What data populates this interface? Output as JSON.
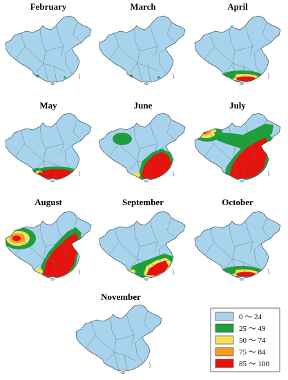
{
  "colors": {
    "background": "#ffffff",
    "base": "#a8d3ec",
    "outline": "#4d5b69",
    "grid": "#6f8190",
    "scale": [
      "#a8d3ec",
      "#1e9e3c",
      "#f2e15a",
      "#f59a23",
      "#e8120c"
    ]
  },
  "legend": {
    "items": [
      {
        "label": "0 ～ 24",
        "color": "#a8d3ec"
      },
      {
        "label": "25 ～ 49",
        "color": "#1e9e3c"
      },
      {
        "label": "50 ～ 74",
        "color": "#f2e15a"
      },
      {
        "label": "75 ～ 84",
        "color": "#f59a23"
      },
      {
        "label": "85 ～ 100",
        "color": "#e8120c"
      }
    ]
  },
  "panels": [
    {
      "title": "February",
      "level": "minimal"
    },
    {
      "title": "March",
      "level": "minimal"
    },
    {
      "title": "April",
      "level": "southern-coast"
    },
    {
      "title": "May",
      "level": "south"
    },
    {
      "title": "June",
      "level": "south-east-plus-west"
    },
    {
      "title": "July",
      "level": "east-and-north-west"
    },
    {
      "title": "August",
      "level": "east-and-far-west"
    },
    {
      "title": "September",
      "level": "south-band"
    },
    {
      "title": "October",
      "level": "southern-coast"
    },
    {
      "title": "November",
      "level": "none"
    }
  ]
}
